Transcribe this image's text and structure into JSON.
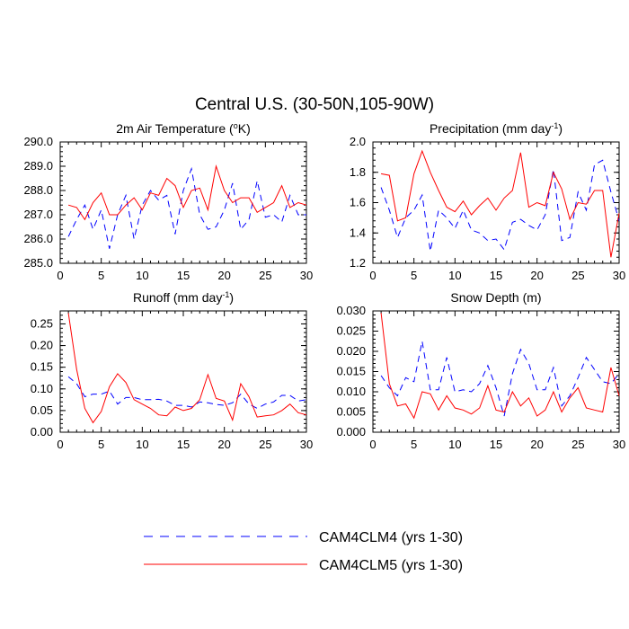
{
  "figure": {
    "title": "Central U.S. (30-50N,105-90W)"
  },
  "legend": [
    {
      "label": "CAM4CLM4 (yrs 1-30)",
      "color": "#0000ff",
      "dash": "dashed"
    },
    {
      "label": "CAM4CLM5 (yrs 1-30)",
      "color": "#ff0000",
      "dash": "solid"
    }
  ],
  "chart_data": [
    {
      "type": "line",
      "title": "2m Air Temperature (",
      "title_sup": "o",
      "title_suffix": "K)",
      "xlim": [
        0,
        30
      ],
      "ylim": [
        285.0,
        290.0
      ],
      "xticks": [
        "0",
        "5",
        "10",
        "15",
        "20",
        "25",
        "30"
      ],
      "yticks": [
        "285.0",
        "286.0",
        "287.0",
        "288.0",
        "289.0",
        "290.0"
      ],
      "x": [
        1,
        2,
        3,
        4,
        5,
        6,
        7,
        8,
        9,
        10,
        11,
        12,
        13,
        14,
        15,
        16,
        17,
        18,
        19,
        20,
        21,
        22,
        23,
        24,
        25,
        26,
        27,
        28,
        29,
        30
      ],
      "series": [
        {
          "name": "CAM4CLM4 (yrs 1-30)",
          "color": "#0000ff",
          "dash": "dashed",
          "values": [
            286.1,
            286.8,
            287.4,
            286.4,
            287.2,
            285.6,
            287.0,
            287.8,
            286.0,
            287.4,
            288.0,
            287.6,
            287.8,
            286.2,
            288.0,
            288.9,
            287.0,
            286.4,
            286.5,
            287.2,
            288.3,
            286.4,
            286.8,
            288.4,
            286.9,
            287.0,
            286.7,
            287.8,
            287.0,
            287.0
          ]
        },
        {
          "name": "CAM4CLM5 (yrs 1-30)",
          "color": "#ff0000",
          "dash": "solid",
          "values": [
            287.4,
            287.3,
            286.8,
            287.5,
            287.9,
            287.0,
            287.0,
            287.4,
            287.7,
            287.2,
            287.9,
            287.8,
            288.5,
            288.2,
            287.3,
            288.0,
            288.1,
            287.2,
            289.0,
            288.0,
            287.5,
            287.7,
            287.7,
            287.1,
            287.3,
            287.5,
            288.2,
            287.3,
            287.5,
            287.4
          ]
        }
      ]
    },
    {
      "type": "line",
      "title": "Precipitation (mm day",
      "title_sup": "-1",
      "title_suffix": ")",
      "xlim": [
        0,
        30
      ],
      "ylim": [
        1.2,
        2.0
      ],
      "xticks": [
        "0",
        "5",
        "10",
        "15",
        "20",
        "25",
        "30"
      ],
      "yticks": [
        "1.2",
        "1.4",
        "1.6",
        "1.8",
        "2.0"
      ],
      "x": [
        1,
        2,
        3,
        4,
        5,
        6,
        7,
        8,
        9,
        10,
        11,
        12,
        13,
        14,
        15,
        16,
        17,
        18,
        19,
        20,
        21,
        22,
        23,
        24,
        25,
        26,
        27,
        28,
        29,
        30
      ],
      "series": [
        {
          "name": "CAM4CLM4 (yrs 1-30)",
          "color": "#0000ff",
          "dash": "dashed",
          "values": [
            1.7,
            1.55,
            1.37,
            1.5,
            1.55,
            1.65,
            1.28,
            1.55,
            1.5,
            1.43,
            1.55,
            1.42,
            1.4,
            1.35,
            1.36,
            1.29,
            1.47,
            1.49,
            1.45,
            1.42,
            1.52,
            1.82,
            1.35,
            1.37,
            1.67,
            1.55,
            1.85,
            1.88,
            1.67,
            1.48
          ]
        },
        {
          "name": "CAM4CLM5 (yrs 1-30)",
          "color": "#ff0000",
          "dash": "solid",
          "values": [
            1.79,
            1.78,
            1.48,
            1.5,
            1.79,
            1.94,
            1.8,
            1.68,
            1.57,
            1.54,
            1.61,
            1.52,
            1.58,
            1.63,
            1.55,
            1.63,
            1.68,
            1.93,
            1.57,
            1.6,
            1.58,
            1.8,
            1.69,
            1.49,
            1.6,
            1.59,
            1.68,
            1.68,
            1.24,
            1.53
          ]
        }
      ]
    },
    {
      "type": "line",
      "title": "Runoff (mm day",
      "title_sup": "-1",
      "title_suffix": ")",
      "xlim": [
        0,
        30
      ],
      "ylim": [
        0.0,
        0.28
      ],
      "xticks": [
        "0",
        "5",
        "10",
        "15",
        "20",
        "25",
        "30"
      ],
      "yticks": [
        "0.00",
        "0.05",
        "0.10",
        "0.15",
        "0.20",
        "0.25"
      ],
      "ytick_values": [
        0.0,
        0.05,
        0.1,
        0.15,
        0.2,
        0.25
      ],
      "x": [
        1,
        2,
        3,
        4,
        5,
        6,
        7,
        8,
        9,
        10,
        11,
        12,
        13,
        14,
        15,
        16,
        17,
        18,
        19,
        20,
        21,
        22,
        23,
        24,
        25,
        26,
        27,
        28,
        29,
        30
      ],
      "series": [
        {
          "name": "CAM4CLM4 (yrs 1-30)",
          "color": "#0000ff",
          "dash": "dashed",
          "values": [
            0.128,
            0.112,
            0.082,
            0.088,
            0.088,
            0.095,
            0.065,
            0.08,
            0.08,
            0.075,
            0.075,
            0.076,
            0.072,
            0.062,
            0.062,
            0.058,
            0.07,
            0.068,
            0.064,
            0.062,
            0.068,
            0.088,
            0.065,
            0.055,
            0.065,
            0.07,
            0.085,
            0.085,
            0.072,
            0.075
          ]
        },
        {
          "name": "CAM4CLM5 (yrs 1-30)",
          "color": "#ff0000",
          "dash": "solid",
          "values": [
            0.275,
            0.145,
            0.055,
            0.022,
            0.048,
            0.105,
            0.135,
            0.115,
            0.075,
            0.065,
            0.055,
            0.04,
            0.038,
            0.058,
            0.05,
            0.055,
            0.075,
            0.133,
            0.078,
            0.072,
            0.028,
            0.112,
            0.082,
            0.035,
            0.038,
            0.04,
            0.05,
            0.065,
            0.045,
            0.04
          ]
        }
      ]
    },
    {
      "type": "line",
      "title": "Snow Depth (m)",
      "title_sup": "",
      "title_suffix": "",
      "xlim": [
        0,
        30
      ],
      "ylim": [
        0.0,
        0.03
      ],
      "xticks": [
        "0",
        "5",
        "10",
        "15",
        "20",
        "25",
        "30"
      ],
      "yticks": [
        "0.000",
        "0.005",
        "0.010",
        "0.015",
        "0.020",
        "0.025",
        "0.030"
      ],
      "x": [
        1,
        2,
        3,
        4,
        5,
        6,
        7,
        8,
        9,
        10,
        11,
        12,
        13,
        14,
        15,
        16,
        17,
        18,
        19,
        20,
        21,
        22,
        23,
        24,
        25,
        26,
        27,
        28,
        29,
        30
      ],
      "series": [
        {
          "name": "CAM4CLM4 (yrs 1-30)",
          "color": "#0000ff",
          "dash": "dashed",
          "values": [
            0.014,
            0.011,
            0.009,
            0.0135,
            0.0125,
            0.0225,
            0.0105,
            0.0105,
            0.0185,
            0.01,
            0.0105,
            0.01,
            0.012,
            0.0165,
            0.011,
            0.004,
            0.0145,
            0.0205,
            0.017,
            0.0105,
            0.0105,
            0.016,
            0.0065,
            0.009,
            0.0135,
            0.0185,
            0.0155,
            0.0125,
            0.012,
            0.0145
          ]
        },
        {
          "name": "CAM4CLM5 (yrs 1-30)",
          "color": "#ff0000",
          "dash": "solid",
          "values": [
            0.0295,
            0.012,
            0.0065,
            0.007,
            0.0035,
            0.01,
            0.0095,
            0.0055,
            0.009,
            0.006,
            0.0055,
            0.0045,
            0.006,
            0.0115,
            0.0055,
            0.005,
            0.01,
            0.0065,
            0.0085,
            0.004,
            0.0055,
            0.01,
            0.005,
            0.0085,
            0.011,
            0.006,
            0.0055,
            0.005,
            0.016,
            0.009
          ]
        }
      ]
    }
  ]
}
